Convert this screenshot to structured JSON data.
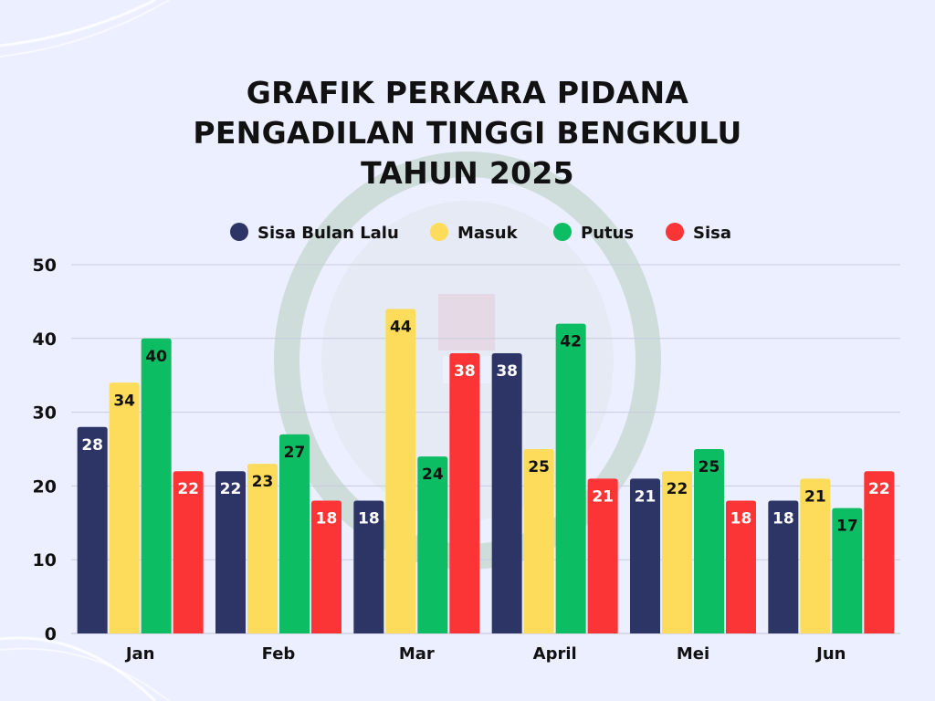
{
  "title_lines": [
    "GRAFIK PERKARA PIDANA",
    "PENGADILAN TINGGI BENGKULU",
    "TAHUN 2025"
  ],
  "chart_data": {
    "type": "bar",
    "title": "GRAFIK PERKARA PIDANA PENGADILAN TINGGI BENGKULU TAHUN 2025",
    "categories": [
      "Jan",
      "Feb",
      "Mar",
      "April",
      "Mei",
      "Jun"
    ],
    "series": [
      {
        "name": "Sisa Bulan Lalu",
        "color": "#2d3566",
        "values": [
          28,
          22,
          18,
          38,
          21,
          18
        ]
      },
      {
        "name": "Masuk",
        "color": "#fddc5c",
        "values": [
          34,
          23,
          44,
          25,
          22,
          21
        ]
      },
      {
        "name": "Putus",
        "color": "#0dbd63",
        "values": [
          40,
          27,
          24,
          42,
          25,
          17
        ]
      },
      {
        "name": "Sisa",
        "color": "#fb3536",
        "values": [
          22,
          18,
          38,
          21,
          18,
          22
        ]
      }
    ],
    "ylim": [
      0,
      50
    ],
    "yticks": [
      0,
      10,
      20,
      30,
      40,
      50
    ],
    "grid": true,
    "legend_position": "top-center",
    "data_labels": true
  }
}
